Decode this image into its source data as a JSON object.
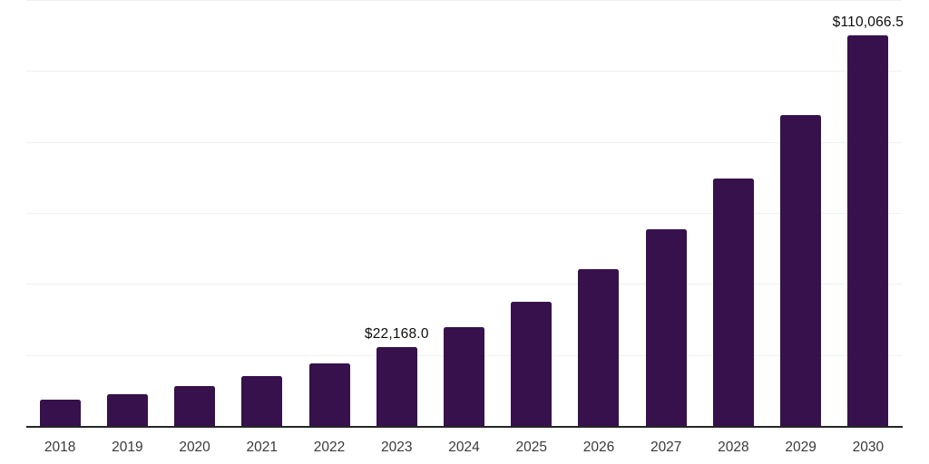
{
  "chart_data": {
    "type": "bar",
    "categories": [
      "2018",
      "2019",
      "2020",
      "2021",
      "2022",
      "2023",
      "2024",
      "2025",
      "2026",
      "2027",
      "2028",
      "2029",
      "2030"
    ],
    "values": [
      7400,
      9000,
      11200,
      14100,
      17700,
      22168.0,
      27870,
      35040,
      44050,
      55380,
      69630,
      87540,
      110066.5
    ],
    "data_labels": [
      "",
      "",
      "",
      "",
      "",
      "$22,168.0",
      "",
      "",
      "",
      "",
      "",
      "",
      "$110,066.5"
    ],
    "title": "",
    "xlabel": "",
    "ylabel": "",
    "ylim": [
      0,
      120000
    ],
    "gridline_step": 20000,
    "grid": "horizontal-only",
    "legend_position": "none",
    "y_tick_labels_visible": false,
    "colors": {
      "bar": "#36114c",
      "gridline": "#f0f0f0",
      "axis_line": "#262626",
      "x_tick_label": "#3a3a3a",
      "data_label": "#0d0d0d",
      "background": "#ffffff"
    }
  }
}
